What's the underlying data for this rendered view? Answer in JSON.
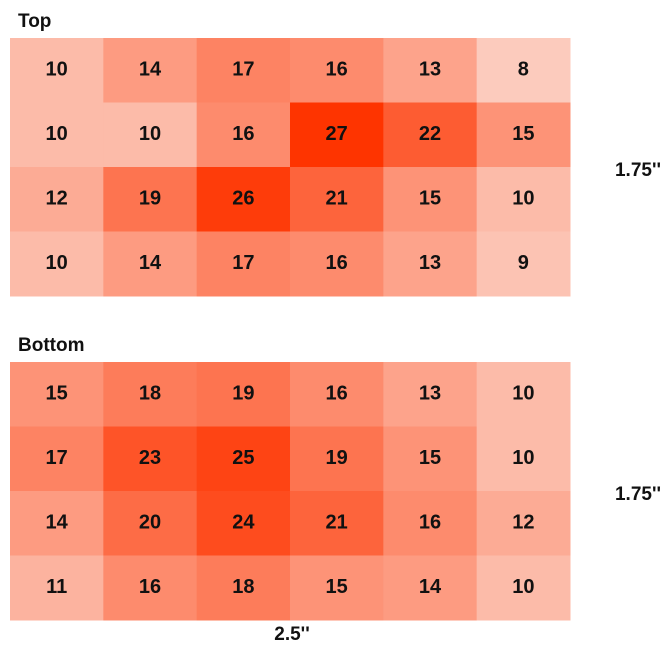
{
  "panels": [
    {
      "title": "Top",
      "side_label": "1.75''",
      "rows": [
        [
          10,
          14,
          17,
          16,
          13,
          8
        ],
        [
          10,
          10,
          16,
          27,
          22,
          15
        ],
        [
          12,
          19,
          26,
          21,
          15,
          10
        ],
        [
          10,
          14,
          17,
          16,
          13,
          9
        ]
      ]
    },
    {
      "title": "Bottom",
      "side_label": "1.75''",
      "rows": [
        [
          15,
          18,
          19,
          16,
          13,
          10
        ],
        [
          17,
          23,
          25,
          19,
          15,
          10
        ],
        [
          14,
          20,
          24,
          21,
          16,
          12
        ],
        [
          11,
          16,
          18,
          15,
          14,
          10
        ]
      ]
    }
  ],
  "width_label": "2.5''"
}
